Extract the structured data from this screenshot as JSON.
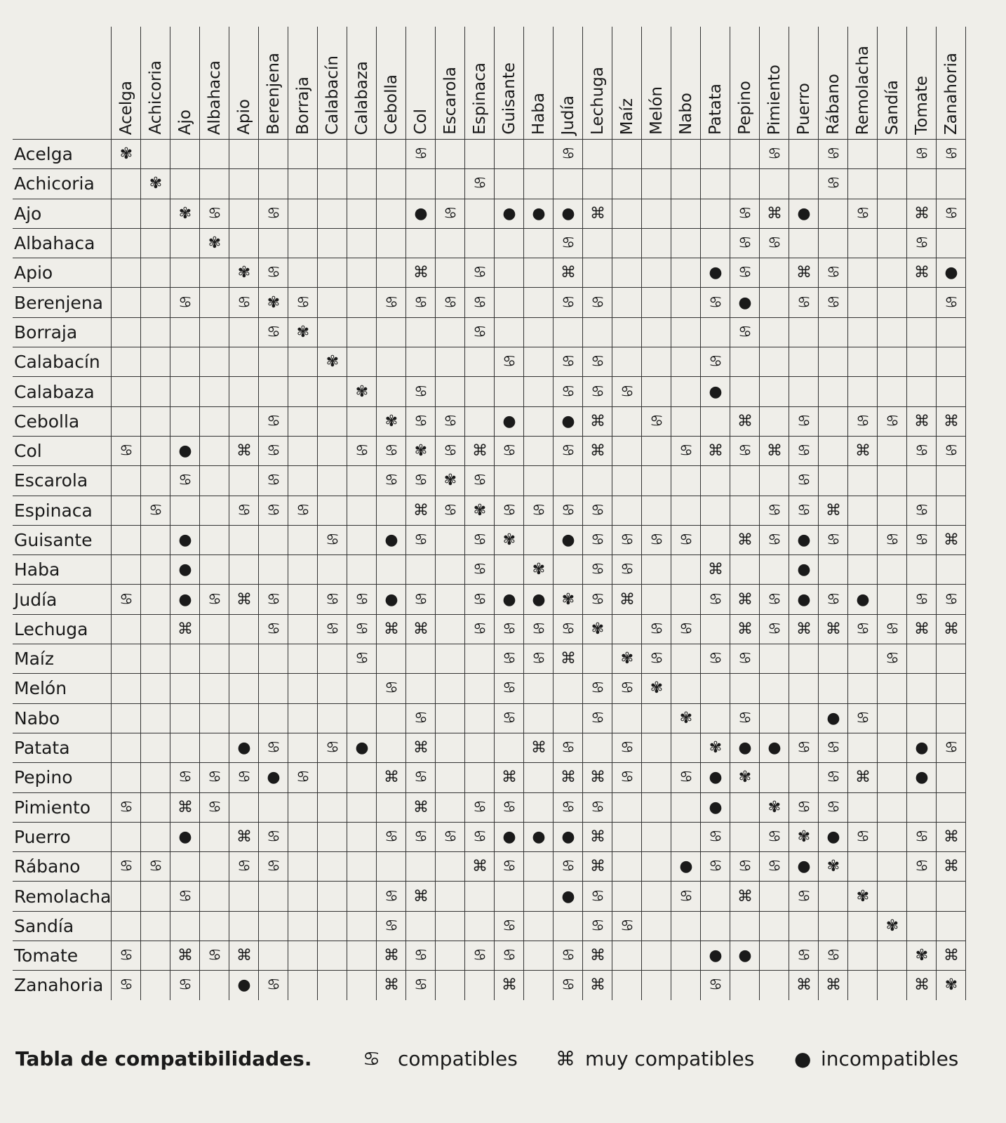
{
  "table": {
    "columns": [
      "Acelga",
      "Achicoria",
      "Ajo",
      "Albahaca",
      "Apio",
      "Berenjena",
      "Borraja",
      "Calabacín",
      "Calabaza",
      "Cebolla",
      "Col",
      "Escarola",
      "Espinaca",
      "Guisante",
      "Haba",
      "Judía",
      "Lechuga",
      "Maíz",
      "Melón",
      "Nabo",
      "Patata",
      "Pepino",
      "Pimiento",
      "Puerro",
      "Rábano",
      "Remolacha",
      "Sandía",
      "Tomate",
      "Zanahoria"
    ],
    "rows": [
      {
        "label": "Acelga",
        "cells": [
          "✾",
          null,
          null,
          null,
          null,
          null,
          null,
          null,
          null,
          null,
          "♋",
          null,
          null,
          null,
          null,
          "♋",
          null,
          null,
          null,
          null,
          null,
          null,
          "♋",
          null,
          "♋",
          null,
          null,
          "♋",
          "♋"
        ]
      },
      {
        "label": "Achicoria",
        "cells": [
          null,
          "✾",
          null,
          null,
          null,
          null,
          null,
          null,
          null,
          null,
          null,
          null,
          "♋",
          null,
          null,
          null,
          null,
          null,
          null,
          null,
          null,
          null,
          null,
          null,
          "♋",
          null,
          null,
          null,
          null
        ]
      },
      {
        "label": "Ajo",
        "cells": [
          null,
          null,
          "✾",
          "♋",
          null,
          "♋",
          null,
          null,
          null,
          null,
          "●",
          "♋",
          null,
          "●",
          "●",
          "●",
          "⌘",
          null,
          null,
          null,
          null,
          "♋",
          "⌘",
          "●",
          null,
          "♋",
          null,
          "⌘",
          "♋"
        ]
      },
      {
        "label": "Albahaca",
        "cells": [
          null,
          null,
          null,
          "✾",
          null,
          null,
          null,
          null,
          null,
          null,
          null,
          null,
          null,
          null,
          null,
          "♋",
          null,
          null,
          null,
          null,
          null,
          "♋",
          "♋",
          null,
          null,
          null,
          null,
          "♋",
          null
        ]
      },
      {
        "label": "Apio",
        "cells": [
          null,
          null,
          null,
          null,
          "✾",
          "♋",
          null,
          null,
          null,
          null,
          "⌘",
          null,
          "♋",
          null,
          null,
          "⌘",
          null,
          null,
          null,
          null,
          "●",
          "♋",
          null,
          "⌘",
          "♋",
          null,
          null,
          "⌘",
          "●"
        ]
      },
      {
        "label": "Berenjena",
        "cells": [
          null,
          null,
          "♋",
          null,
          "♋",
          "✾",
          "♋",
          null,
          null,
          "♋",
          "♋",
          "♋",
          "♋",
          null,
          null,
          "♋",
          "♋",
          null,
          null,
          null,
          "♋",
          "●",
          null,
          "♋",
          "♋",
          null,
          null,
          null,
          "♋"
        ]
      },
      {
        "label": "Borraja",
        "cells": [
          null,
          null,
          null,
          null,
          null,
          "♋",
          "✾",
          null,
          null,
          null,
          null,
          null,
          "♋",
          null,
          null,
          null,
          null,
          null,
          null,
          null,
          null,
          "♋",
          null,
          null,
          null,
          null,
          null,
          null,
          null
        ]
      },
      {
        "label": "Calabacín",
        "cells": [
          null,
          null,
          null,
          null,
          null,
          null,
          null,
          "✾",
          null,
          null,
          null,
          null,
          null,
          "♋",
          null,
          "♋",
          "♋",
          null,
          null,
          null,
          "♋",
          null,
          null,
          null,
          null,
          null,
          null,
          null,
          null
        ]
      },
      {
        "label": "Calabaza",
        "cells": [
          null,
          null,
          null,
          null,
          null,
          null,
          null,
          null,
          "✾",
          null,
          "♋",
          null,
          null,
          null,
          null,
          "♋",
          "♋",
          "♋",
          null,
          null,
          "●",
          null,
          null,
          null,
          null,
          null,
          null,
          null,
          null
        ]
      },
      {
        "label": "Cebolla",
        "cells": [
          null,
          null,
          null,
          null,
          null,
          "♋",
          null,
          null,
          null,
          "✾",
          "♋",
          "♋",
          null,
          "●",
          null,
          "●",
          "⌘",
          null,
          "♋",
          null,
          null,
          "⌘",
          null,
          "♋",
          null,
          "♋",
          "♋",
          "⌘",
          "⌘"
        ]
      },
      {
        "label": "Col",
        "cells": [
          "♋",
          null,
          "●",
          null,
          "⌘",
          "♋",
          null,
          null,
          "♋",
          "♋",
          "✾",
          "♋",
          "⌘",
          "♋",
          null,
          "♋",
          "⌘",
          null,
          null,
          "♋",
          "⌘",
          "♋",
          "⌘",
          "♋",
          null,
          "⌘",
          null,
          "♋",
          "♋"
        ]
      },
      {
        "label": "Escarola",
        "cells": [
          null,
          null,
          "♋",
          null,
          null,
          "♋",
          null,
          null,
          null,
          "♋",
          "♋",
          "✾",
          "♋",
          null,
          null,
          null,
          null,
          null,
          null,
          null,
          null,
          null,
          null,
          "♋",
          null,
          null,
          null,
          null,
          null
        ]
      },
      {
        "label": "Espinaca",
        "cells": [
          null,
          "♋",
          null,
          null,
          "♋",
          "♋",
          "♋",
          null,
          null,
          null,
          "⌘",
          "♋",
          "✾",
          "♋",
          "♋",
          "♋",
          "♋",
          null,
          null,
          null,
          null,
          null,
          "♋",
          "♋",
          "⌘",
          null,
          null,
          "♋",
          null
        ]
      },
      {
        "label": "Guisante",
        "cells": [
          null,
          null,
          "●",
          null,
          null,
          null,
          null,
          "♋",
          null,
          "●",
          "♋",
          null,
          "♋",
          "✾",
          null,
          "●",
          "♋",
          "♋",
          "♋",
          "♋",
          null,
          "⌘",
          "♋",
          "●",
          "♋",
          null,
          "♋",
          "♋",
          "⌘"
        ]
      },
      {
        "label": "Haba",
        "cells": [
          null,
          null,
          "●",
          null,
          null,
          null,
          null,
          null,
          null,
          null,
          null,
          null,
          "♋",
          null,
          "✾",
          null,
          "♋",
          "♋",
          null,
          null,
          "⌘",
          null,
          null,
          "●",
          null,
          null,
          null,
          null,
          null
        ]
      },
      {
        "label": "Judía",
        "cells": [
          "♋",
          null,
          "●",
          "♋",
          "⌘",
          "♋",
          null,
          "♋",
          "♋",
          "●",
          "♋",
          null,
          "♋",
          "●",
          "●",
          "✾",
          "♋",
          "⌘",
          null,
          null,
          "♋",
          "⌘",
          "♋",
          "●",
          "♋",
          "●",
          null,
          "♋",
          "♋"
        ]
      },
      {
        "label": "Lechuga",
        "cells": [
          null,
          null,
          "⌘",
          null,
          null,
          "♋",
          null,
          "♋",
          "♋",
          "⌘",
          "⌘",
          null,
          "♋",
          "♋",
          "♋",
          "♋",
          "✾",
          null,
          "♋",
          "♋",
          null,
          "⌘",
          "♋",
          "⌘",
          "⌘",
          "♋",
          "♋",
          "⌘",
          "⌘"
        ]
      },
      {
        "label": "Maíz",
        "cells": [
          null,
          null,
          null,
          null,
          null,
          null,
          null,
          null,
          "♋",
          null,
          null,
          null,
          null,
          "♋",
          "♋",
          "⌘",
          null,
          "✾",
          "♋",
          null,
          "♋",
          "♋",
          null,
          null,
          null,
          null,
          "♋",
          null,
          null
        ]
      },
      {
        "label": "Melón",
        "cells": [
          null,
          null,
          null,
          null,
          null,
          null,
          null,
          null,
          null,
          "♋",
          null,
          null,
          null,
          "♋",
          null,
          null,
          "♋",
          "♋",
          "✾",
          null,
          null,
          null,
          null,
          null,
          null,
          null,
          null,
          null,
          null
        ]
      },
      {
        "label": "Nabo",
        "cells": [
          null,
          null,
          null,
          null,
          null,
          null,
          null,
          null,
          null,
          null,
          "♋",
          null,
          null,
          "♋",
          null,
          null,
          "♋",
          null,
          null,
          "✾",
          null,
          "♋",
          null,
          null,
          "●",
          "♋",
          null,
          null,
          null
        ]
      },
      {
        "label": "Patata",
        "cells": [
          null,
          null,
          null,
          null,
          "●",
          "♋",
          null,
          "♋",
          "●",
          null,
          "⌘",
          null,
          null,
          null,
          "⌘",
          "♋",
          null,
          "♋",
          null,
          null,
          "✾",
          "●",
          "●",
          "♋",
          "♋",
          null,
          null,
          "●",
          "♋"
        ]
      },
      {
        "label": "Pepino",
        "cells": [
          null,
          null,
          "♋",
          "♋",
          "♋",
          "●",
          "♋",
          null,
          null,
          "⌘",
          "♋",
          null,
          null,
          "⌘",
          null,
          "⌘",
          "⌘",
          "♋",
          null,
          "♋",
          "●",
          "✾",
          null,
          null,
          "♋",
          "⌘",
          null,
          "●",
          null
        ]
      },
      {
        "label": "Pimiento",
        "cells": [
          "♋",
          null,
          "⌘",
          "♋",
          null,
          null,
          null,
          null,
          null,
          null,
          "⌘",
          null,
          "♋",
          "♋",
          null,
          "♋",
          "♋",
          null,
          null,
          null,
          "●",
          null,
          "✾",
          "♋",
          "♋",
          null,
          null,
          null,
          null
        ]
      },
      {
        "label": "Puerro",
        "cells": [
          null,
          null,
          "●",
          null,
          "⌘",
          "♋",
          null,
          null,
          null,
          "♋",
          "♋",
          "♋",
          "♋",
          "●",
          "●",
          "●",
          "⌘",
          null,
          null,
          null,
          "♋",
          null,
          "♋",
          "✾",
          "●",
          "♋",
          null,
          "♋",
          "⌘"
        ]
      },
      {
        "label": "Rábano",
        "cells": [
          "♋",
          "♋",
          null,
          null,
          "♋",
          "♋",
          null,
          null,
          null,
          null,
          null,
          null,
          "⌘",
          "♋",
          null,
          "♋",
          "⌘",
          null,
          null,
          "●",
          "♋",
          "♋",
          "♋",
          "●",
          "✾",
          null,
          null,
          "♋",
          "⌘"
        ]
      },
      {
        "label": "Remolacha",
        "cells": [
          null,
          null,
          "♋",
          null,
          null,
          null,
          null,
          null,
          null,
          "♋",
          "⌘",
          null,
          null,
          null,
          null,
          "●",
          "♋",
          null,
          null,
          "♋",
          null,
          "⌘",
          null,
          "♋",
          null,
          "✾",
          null,
          null,
          null
        ]
      },
      {
        "label": "Sandía",
        "cells": [
          null,
          null,
          null,
          null,
          null,
          null,
          null,
          null,
          null,
          "♋",
          null,
          null,
          null,
          "♋",
          null,
          null,
          "♋",
          "♋",
          null,
          null,
          null,
          null,
          null,
          null,
          null,
          null,
          "✾",
          null,
          null
        ]
      },
      {
        "label": "Tomate",
        "cells": [
          "♋",
          null,
          "⌘",
          "♋",
          "⌘",
          null,
          null,
          null,
          null,
          "⌘",
          "♋",
          null,
          "♋",
          "♋",
          null,
          "♋",
          "⌘",
          null,
          null,
          null,
          "●",
          "●",
          null,
          "♋",
          "♋",
          null,
          null,
          "✾",
          "⌘"
        ]
      },
      {
        "label": "Zanahoria",
        "cells": [
          "♋",
          null,
          "♋",
          null,
          "●",
          "♋",
          null,
          null,
          null,
          "⌘",
          "♋",
          null,
          null,
          "⌘",
          null,
          "♋",
          "⌘",
          null,
          null,
          null,
          "♋",
          null,
          null,
          "⌘",
          "⌘",
          null,
          null,
          "⌘",
          "✾"
        ]
      }
    ]
  },
  "caption": "Tabla de compatibilidades.",
  "legend": [
    {
      "symbol": "♋",
      "label": "compatibles"
    },
    {
      "symbol": "⌘",
      "label": "muy compatibles"
    },
    {
      "symbol": "●",
      "label": "incompatibles"
    }
  ]
}
